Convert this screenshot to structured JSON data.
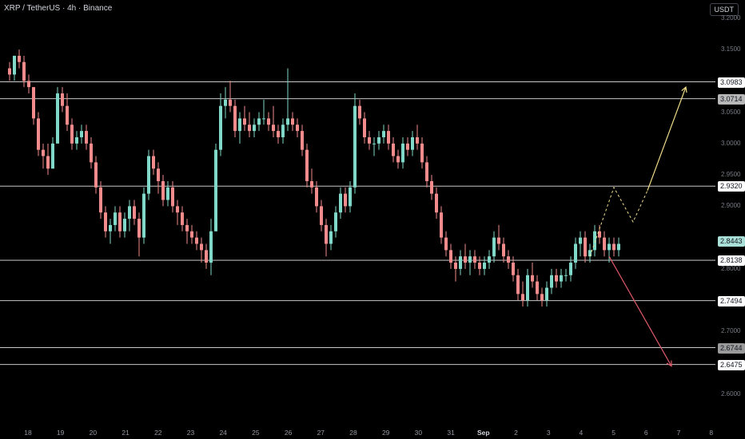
{
  "header": {
    "title": "XRP / TetherUS · 4h · Binance",
    "quote_currency": "USDT"
  },
  "chart_data": {
    "type": "candlestick",
    "y_range": [
      2.545,
      3.22
    ],
    "y_ticks": [
      3.2,
      3.15,
      3.05,
      3.0,
      2.95,
      2.9,
      2.8,
      2.7,
      2.6
    ],
    "y_tick_labels": [
      "3.2000",
      "3.1500",
      "3.0500",
      "3.0000",
      "2.9500",
      "2.9000",
      "2.8000",
      "2.7000",
      "2.6000"
    ],
    "x_ticks": [
      {
        "label": "18",
        "day": 0
      },
      {
        "label": "19",
        "day": 1
      },
      {
        "label": "20",
        "day": 2
      },
      {
        "label": "21",
        "day": 3
      },
      {
        "label": "22",
        "day": 4
      },
      {
        "label": "23",
        "day": 5
      },
      {
        "label": "24",
        "day": 6
      },
      {
        "label": "25",
        "day": 7
      },
      {
        "label": "26",
        "day": 8
      },
      {
        "label": "27",
        "day": 9
      },
      {
        "label": "28",
        "day": 10
      },
      {
        "label": "29",
        "day": 11
      },
      {
        "label": "30",
        "day": 12
      },
      {
        "label": "31",
        "day": 13
      },
      {
        "label": "Sep",
        "day": 14,
        "bold": true
      },
      {
        "label": "2",
        "day": 15
      },
      {
        "label": "3",
        "day": 16
      },
      {
        "label": "4",
        "day": 17
      },
      {
        "label": "5",
        "day": 18
      },
      {
        "label": "6",
        "day": 19
      },
      {
        "label": "7",
        "day": 20
      },
      {
        "label": "8",
        "day": 21
      }
    ],
    "levels": [
      {
        "value": 3.0983,
        "label": "3.0983",
        "style": "white"
      },
      {
        "value": 3.0714,
        "label": "3.0714",
        "style": "grey"
      },
      {
        "value": 2.932,
        "label": "2.9320",
        "style": "white"
      },
      {
        "value": 2.8138,
        "label": "2.8138",
        "style": "white"
      },
      {
        "value": 2.7494,
        "label": "2.7494",
        "style": "white"
      },
      {
        "value": 2.6744,
        "label": "2.6744",
        "style": "dark"
      },
      {
        "value": 2.6475,
        "label": "2.6475",
        "style": "white"
      }
    ],
    "last_price": {
      "value": 2.8443,
      "label": "2.8443"
    },
    "candles": [
      [
        3.12,
        3.13,
        3.1,
        3.11
      ],
      [
        3.11,
        3.14,
        3.1,
        3.14
      ],
      [
        3.14,
        3.15,
        3.12,
        3.13
      ],
      [
        3.13,
        3.14,
        3.09,
        3.1
      ],
      [
        3.1,
        3.11,
        3.08,
        3.09
      ],
      [
        3.09,
        3.09,
        3.03,
        3.04
      ],
      [
        3.04,
        3.05,
        2.98,
        2.99
      ],
      [
        2.99,
        3.0,
        2.96,
        2.98
      ],
      [
        2.98,
        3.0,
        2.95,
        2.96
      ],
      [
        2.96,
        3.01,
        2.96,
        3.0
      ],
      [
        3.0,
        3.09,
        3.0,
        3.08
      ],
      [
        3.08,
        3.09,
        3.05,
        3.06
      ],
      [
        3.06,
        3.08,
        3.02,
        3.03
      ],
      [
        3.03,
        3.04,
        2.99,
        3.0
      ],
      [
        3.0,
        3.02,
        2.99,
        3.01
      ],
      [
        3.01,
        3.03,
        3.0,
        3.02
      ],
      [
        3.02,
        3.03,
        2.99,
        3.0
      ],
      [
        3.0,
        3.01,
        2.96,
        2.97
      ],
      [
        2.97,
        2.98,
        2.92,
        2.93
      ],
      [
        2.93,
        2.94,
        2.88,
        2.89
      ],
      [
        2.89,
        2.9,
        2.85,
        2.86
      ],
      [
        2.86,
        2.88,
        2.84,
        2.87
      ],
      [
        2.87,
        2.9,
        2.86,
        2.89
      ],
      [
        2.89,
        2.9,
        2.85,
        2.86
      ],
      [
        2.86,
        2.89,
        2.85,
        2.88
      ],
      [
        2.88,
        2.91,
        2.86,
        2.9
      ],
      [
        2.9,
        2.91,
        2.87,
        2.88
      ],
      [
        2.88,
        2.89,
        2.82,
        2.85
      ],
      [
        2.85,
        2.93,
        2.84,
        2.92
      ],
      [
        2.92,
        2.99,
        2.91,
        2.98
      ],
      [
        2.98,
        2.99,
        2.95,
        2.96
      ],
      [
        2.96,
        2.97,
        2.92,
        2.94
      ],
      [
        2.94,
        2.95,
        2.9,
        2.91
      ],
      [
        2.91,
        2.94,
        2.9,
        2.93
      ],
      [
        2.93,
        2.94,
        2.89,
        2.9
      ],
      [
        2.9,
        2.91,
        2.87,
        2.89
      ],
      [
        2.89,
        2.9,
        2.86,
        2.87
      ],
      [
        2.87,
        2.88,
        2.84,
        2.86
      ],
      [
        2.86,
        2.87,
        2.84,
        2.85
      ],
      [
        2.85,
        2.86,
        2.83,
        2.84
      ],
      [
        2.84,
        2.85,
        2.81,
        2.83
      ],
      [
        2.83,
        2.84,
        2.8,
        2.81
      ],
      [
        2.81,
        2.88,
        2.79,
        2.86
      ],
      [
        2.86,
        3.0,
        2.86,
        2.99
      ],
      [
        2.99,
        3.08,
        2.98,
        3.06
      ],
      [
        3.06,
        3.09,
        3.04,
        3.07
      ],
      [
        3.07,
        3.1,
        3.05,
        3.06
      ],
      [
        3.06,
        3.07,
        3.01,
        3.02
      ],
      [
        3.02,
        3.05,
        3.0,
        3.04
      ],
      [
        3.04,
        3.06,
        3.02,
        3.03
      ],
      [
        3.03,
        3.05,
        3.01,
        3.02
      ],
      [
        3.02,
        3.04,
        3.01,
        3.03
      ],
      [
        3.03,
        3.05,
        3.02,
        3.04
      ],
      [
        3.04,
        3.07,
        3.03,
        3.04
      ],
      [
        3.04,
        3.05,
        3.02,
        3.03
      ],
      [
        3.03,
        3.06,
        3.01,
        3.02
      ],
      [
        3.02,
        3.03,
        3.0,
        3.01
      ],
      [
        3.01,
        3.04,
        3.0,
        3.03
      ],
      [
        3.03,
        3.12,
        3.02,
        3.04
      ],
      [
        3.04,
        3.05,
        3.02,
        3.03
      ],
      [
        3.03,
        3.04,
        3.01,
        3.02
      ],
      [
        3.02,
        3.03,
        2.98,
        2.99
      ],
      [
        2.99,
        3.0,
        2.93,
        2.94
      ],
      [
        2.94,
        2.96,
        2.92,
        2.93
      ],
      [
        2.93,
        2.94,
        2.89,
        2.9
      ],
      [
        2.9,
        2.91,
        2.86,
        2.87
      ],
      [
        2.87,
        2.88,
        2.82,
        2.84
      ],
      [
        2.84,
        2.87,
        2.83,
        2.86
      ],
      [
        2.86,
        2.9,
        2.85,
        2.89
      ],
      [
        2.89,
        2.93,
        2.88,
        2.92
      ],
      [
        2.92,
        2.93,
        2.89,
        2.9
      ],
      [
        2.9,
        2.94,
        2.89,
        2.93
      ],
      [
        2.93,
        3.08,
        2.92,
        3.06
      ],
      [
        3.06,
        3.07,
        3.03,
        3.04
      ],
      [
        3.04,
        3.05,
        3.0,
        3.01
      ],
      [
        3.01,
        3.02,
        2.99,
        3.0
      ],
      [
        3.0,
        3.01,
        2.98,
        3.0
      ],
      [
        3.0,
        3.02,
        2.99,
        3.01
      ],
      [
        3.01,
        3.03,
        3.0,
        3.02
      ],
      [
        3.02,
        3.03,
        2.99,
        3.0
      ],
      [
        3.0,
        3.01,
        2.97,
        2.98
      ],
      [
        2.98,
        2.99,
        2.96,
        2.97
      ],
      [
        2.97,
        3.01,
        2.96,
        3.0
      ],
      [
        3.0,
        3.01,
        2.98,
        2.99
      ],
      [
        2.99,
        3.02,
        2.98,
        3.01
      ],
      [
        3.01,
        3.03,
        2.99,
        3.0
      ],
      [
        3.0,
        3.01,
        2.96,
        2.97
      ],
      [
        2.97,
        2.98,
        2.93,
        2.94
      ],
      [
        2.94,
        2.95,
        2.91,
        2.92
      ],
      [
        2.92,
        2.93,
        2.88,
        2.89
      ],
      [
        2.89,
        2.9,
        2.84,
        2.85
      ],
      [
        2.85,
        2.86,
        2.82,
        2.83
      ],
      [
        2.83,
        2.84,
        2.8,
        2.81
      ],
      [
        2.81,
        2.82,
        2.78,
        2.8
      ],
      [
        2.8,
        2.83,
        2.79,
        2.82
      ],
      [
        2.82,
        2.84,
        2.8,
        2.81
      ],
      [
        2.81,
        2.83,
        2.79,
        2.82
      ],
      [
        2.82,
        2.83,
        2.8,
        2.81
      ],
      [
        2.81,
        2.82,
        2.79,
        2.8
      ],
      [
        2.8,
        2.82,
        2.79,
        2.81
      ],
      [
        2.81,
        2.83,
        2.8,
        2.82
      ],
      [
        2.82,
        2.86,
        2.81,
        2.85
      ],
      [
        2.85,
        2.87,
        2.83,
        2.84
      ],
      [
        2.84,
        2.85,
        2.81,
        2.82
      ],
      [
        2.82,
        2.83,
        2.8,
        2.81
      ],
      [
        2.81,
        2.82,
        2.78,
        2.79
      ],
      [
        2.79,
        2.8,
        2.75,
        2.76
      ],
      [
        2.76,
        2.78,
        2.74,
        2.75
      ],
      [
        2.75,
        2.8,
        2.74,
        2.79
      ],
      [
        2.79,
        2.81,
        2.77,
        2.78
      ],
      [
        2.78,
        2.79,
        2.75,
        2.76
      ],
      [
        2.76,
        2.77,
        2.74,
        2.75
      ],
      [
        2.75,
        2.78,
        2.74,
        2.77
      ],
      [
        2.77,
        2.8,
        2.76,
        2.79
      ],
      [
        2.79,
        2.8,
        2.77,
        2.78
      ],
      [
        2.78,
        2.8,
        2.77,
        2.79
      ],
      [
        2.79,
        2.8,
        2.78,
        2.79
      ],
      [
        2.79,
        2.82,
        2.78,
        2.81
      ],
      [
        2.81,
        2.85,
        2.8,
        2.84
      ],
      [
        2.84,
        2.86,
        2.82,
        2.85
      ],
      [
        2.85,
        2.86,
        2.81,
        2.82
      ],
      [
        2.82,
        2.84,
        2.81,
        2.83
      ],
      [
        2.83,
        2.87,
        2.82,
        2.86
      ],
      [
        2.86,
        2.87,
        2.84,
        2.85
      ],
      [
        2.85,
        2.86,
        2.82,
        2.83
      ],
      [
        2.83,
        2.85,
        2.81,
        2.84
      ],
      [
        2.84,
        2.85,
        2.82,
        2.83
      ],
      [
        2.83,
        2.85,
        2.82,
        2.84
      ]
    ],
    "projection_up": [
      [
        121,
        2.82
      ],
      [
        126,
        2.93
      ],
      [
        130,
        2.875
      ],
      [
        133,
        2.925
      ],
      [
        141,
        3.09
      ]
    ],
    "projection_down": [
      [
        125,
        2.82
      ],
      [
        138,
        2.645
      ]
    ]
  }
}
